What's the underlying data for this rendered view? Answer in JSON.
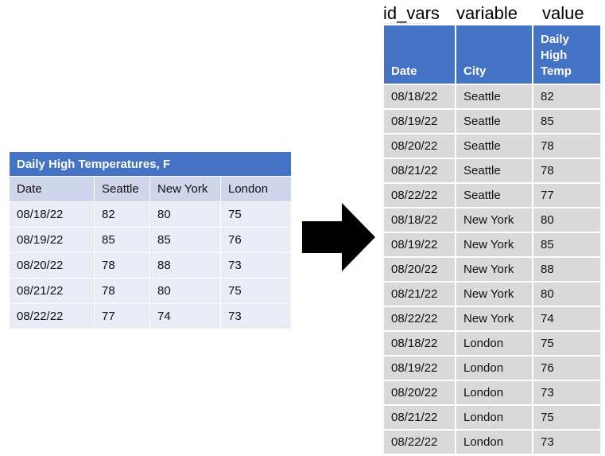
{
  "wide_table": {
    "title": "Daily High Temperatures, F",
    "headers": [
      "Date",
      "Seattle",
      "New York",
      "London"
    ],
    "rows": [
      [
        "08/18/22",
        "82",
        "80",
        "75"
      ],
      [
        "08/19/22",
        "85",
        "85",
        "76"
      ],
      [
        "08/20/22",
        "78",
        "88",
        "73"
      ],
      [
        "08/21/22",
        "78",
        "80",
        "75"
      ],
      [
        "08/22/22",
        "77",
        "74",
        "73"
      ]
    ]
  },
  "labels": {
    "id_vars": "id_vars",
    "variable": "variable",
    "value": "value"
  },
  "long_table": {
    "headers": [
      "Date",
      "City",
      "Daily High Temp"
    ],
    "rows": [
      [
        "08/18/22",
        "Seattle",
        "82"
      ],
      [
        "08/19/22",
        "Seattle",
        "85"
      ],
      [
        "08/20/22",
        "Seattle",
        "78"
      ],
      [
        "08/21/22",
        "Seattle",
        "78"
      ],
      [
        "08/22/22",
        "Seattle",
        "77"
      ],
      [
        "08/18/22",
        "New York",
        "80"
      ],
      [
        "08/19/22",
        "New York",
        "85"
      ],
      [
        "08/20/22",
        "New York",
        "88"
      ],
      [
        "08/21/22",
        "New York",
        "80"
      ],
      [
        "08/22/22",
        "New York",
        "74"
      ],
      [
        "08/18/22",
        "London",
        "75"
      ],
      [
        "08/19/22",
        "London",
        "76"
      ],
      [
        "08/20/22",
        "London",
        "73"
      ],
      [
        "08/21/22",
        "London",
        "75"
      ],
      [
        "08/22/22",
        "London",
        "73"
      ]
    ]
  },
  "colors": {
    "header_blue": "#4472c4",
    "wide_header_row": "#cfd5ea",
    "wide_body": "#e9ebf5",
    "long_body": "#d9d9d9",
    "arrow": "#000000"
  }
}
